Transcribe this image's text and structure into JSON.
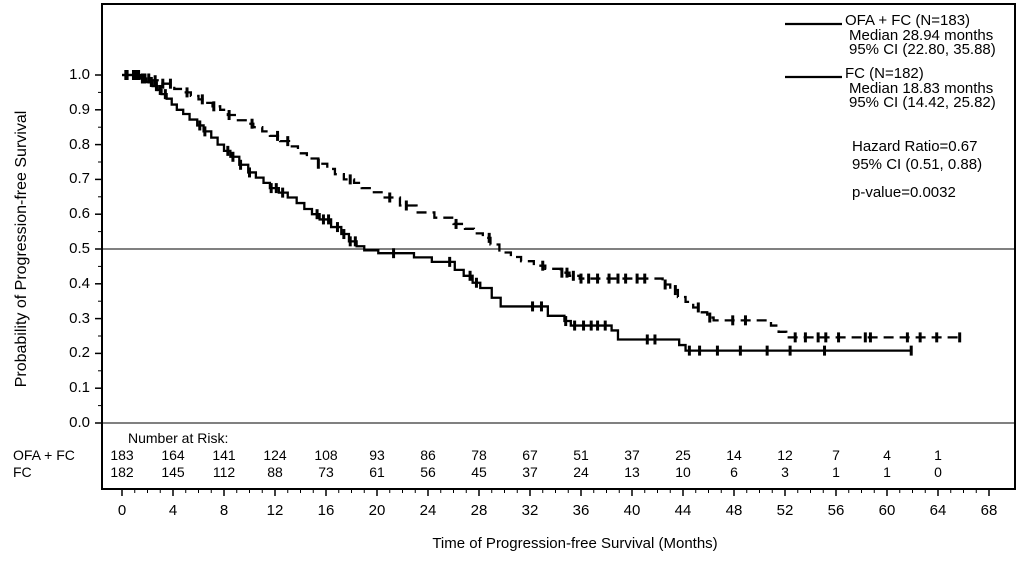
{
  "legend": {
    "series": [
      {
        "name": "OFA + FC (N=183)",
        "median": "Median 28.94 months",
        "ci": "95% CI (22.80, 35.88)"
      },
      {
        "name": "FC (N=182)",
        "median": "Median 18.83 months",
        "ci": "95% CI (14.42, 25.82)"
      }
    ]
  },
  "stats": {
    "hazard_ratio": "Hazard Ratio=0.67",
    "hazard_ratio_ci": "95% CI (0.51, 0.88)",
    "p_value": "p-value=0.0032"
  },
  "chart_data": {
    "type": "line",
    "subtype": "kaplan-meier-step",
    "title": "",
    "xlabel": "Time of Progression-free Survival (Months)",
    "ylabel": "Probability of Progression-free Survival",
    "xlim": [
      0,
      68
    ],
    "ylim": [
      0.0,
      1.0
    ],
    "x_ticks": [
      0,
      4,
      8,
      12,
      16,
      20,
      24,
      28,
      32,
      36,
      40,
      44,
      48,
      52,
      56,
      60,
      64,
      68
    ],
    "x_minor_tick_step": 1,
    "y_ticks": [
      0.0,
      0.1,
      0.2,
      0.3,
      0.4,
      0.5,
      0.6,
      0.7,
      0.8,
      0.9,
      1.0
    ],
    "y_tick_labels": [
      "0.0",
      "0.1",
      "0.2",
      "0.3",
      "0.4",
      "0.5",
      "0.6",
      "0.7",
      "0.8",
      "0.9",
      "1.0"
    ],
    "y_minor_tick_step": 0.05,
    "reference_lines_y": [
      0.5,
      0.0
    ],
    "grid": "off",
    "legend_position": "top-right-inside",
    "line_color": "#000000",
    "series": [
      {
        "name": "OFA + FC (N=183)",
        "n": 183,
        "line_style": "dashed",
        "color": "#000000",
        "median_months": 28.94,
        "ci_95": [
          22.8,
          35.88
        ],
        "steps": [
          [
            0,
            1.0
          ],
          [
            1.5,
            0.99
          ],
          [
            2.2,
            0.985
          ],
          [
            3.0,
            0.975
          ],
          [
            4.1,
            0.96
          ],
          [
            4.8,
            0.95
          ],
          [
            5.4,
            0.94
          ],
          [
            6.0,
            0.93
          ],
          [
            6.6,
            0.92
          ],
          [
            7.1,
            0.91
          ],
          [
            7.7,
            0.9
          ],
          [
            8.3,
            0.885
          ],
          [
            9.0,
            0.87
          ],
          [
            9.7,
            0.86
          ],
          [
            10.3,
            0.85
          ],
          [
            11.0,
            0.838
          ],
          [
            11.6,
            0.825
          ],
          [
            12.4,
            0.81
          ],
          [
            13.1,
            0.795
          ],
          [
            13.8,
            0.775
          ],
          [
            14.5,
            0.76
          ],
          [
            15.4,
            0.745
          ],
          [
            16.1,
            0.73
          ],
          [
            16.7,
            0.715
          ],
          [
            17.4,
            0.7
          ],
          [
            18.2,
            0.69
          ],
          [
            18.8,
            0.675
          ],
          [
            19.6,
            0.663
          ],
          [
            20.6,
            0.648
          ],
          [
            21.8,
            0.625
          ],
          [
            23.1,
            0.605
          ],
          [
            24.5,
            0.59
          ],
          [
            26.0,
            0.572
          ],
          [
            26.9,
            0.558
          ],
          [
            27.6,
            0.545
          ],
          [
            28.3,
            0.532
          ],
          [
            28.9,
            0.513
          ],
          [
            29.6,
            0.49
          ],
          [
            30.5,
            0.477
          ],
          [
            31.3,
            0.465
          ],
          [
            32.3,
            0.452
          ],
          [
            33.2,
            0.443
          ],
          [
            34.4,
            0.432
          ],
          [
            35.1,
            0.423
          ],
          [
            35.9,
            0.415
          ],
          [
            42.4,
            0.398
          ],
          [
            43.0,
            0.382
          ],
          [
            43.6,
            0.362
          ],
          [
            44.2,
            0.348
          ],
          [
            44.8,
            0.332
          ],
          [
            45.3,
            0.318
          ],
          [
            45.9,
            0.303
          ],
          [
            46.4,
            0.295
          ],
          [
            50.9,
            0.28
          ],
          [
            51.5,
            0.262
          ],
          [
            52.1,
            0.246
          ]
        ],
        "censor_times": [
          0.4,
          0.9,
          1.3,
          1.8,
          2.1,
          2.6,
          3.2,
          3.8,
          5.1,
          6.3,
          7.2,
          8.4,
          10.2,
          12.2,
          13.0,
          15.4,
          17.9,
          21.0,
          22.3,
          26.2,
          28.8,
          33.0,
          34.5,
          34.9,
          35.4,
          36.0,
          36.6,
          37.3,
          38.2,
          38.9,
          39.5,
          40.4,
          41.0,
          42.6,
          43.4,
          45.2,
          46.1,
          47.9,
          48.9,
          52.8,
          53.6,
          54.6,
          55.2,
          56.2,
          58.3,
          58.7,
          61.6,
          62.6,
          63.9,
          65.7
        ],
        "end_time": 66.0
      },
      {
        "name": "FC (N=182)",
        "n": 182,
        "line_style": "solid",
        "color": "#000000",
        "median_months": 18.83,
        "ci_95": [
          14.42,
          25.82
        ],
        "steps": [
          [
            0,
            1.0
          ],
          [
            1.3,
            0.99
          ],
          [
            1.9,
            0.98
          ],
          [
            2.4,
            0.968
          ],
          [
            2.8,
            0.957
          ],
          [
            3.1,
            0.945
          ],
          [
            3.5,
            0.932
          ],
          [
            3.9,
            0.915
          ],
          [
            4.3,
            0.9
          ],
          [
            4.8,
            0.888
          ],
          [
            5.3,
            0.872
          ],
          [
            5.9,
            0.855
          ],
          [
            6.4,
            0.838
          ],
          [
            7.0,
            0.82
          ],
          [
            7.5,
            0.8
          ],
          [
            8.0,
            0.782
          ],
          [
            8.5,
            0.765
          ],
          [
            9.2,
            0.742
          ],
          [
            9.9,
            0.72
          ],
          [
            10.5,
            0.705
          ],
          [
            11.1,
            0.69
          ],
          [
            11.6,
            0.675
          ],
          [
            12.3,
            0.662
          ],
          [
            13.0,
            0.648
          ],
          [
            13.7,
            0.632
          ],
          [
            14.3,
            0.615
          ],
          [
            14.9,
            0.6
          ],
          [
            15.5,
            0.585
          ],
          [
            16.4,
            0.563
          ],
          [
            17.2,
            0.543
          ],
          [
            17.8,
            0.522
          ],
          [
            18.4,
            0.508
          ],
          [
            19.0,
            0.496
          ],
          [
            20.1,
            0.488
          ],
          [
            22.9,
            0.476
          ],
          [
            24.3,
            0.463
          ],
          [
            26.1,
            0.44
          ],
          [
            26.8,
            0.423
          ],
          [
            27.5,
            0.403
          ],
          [
            28.1,
            0.388
          ],
          [
            29.0,
            0.36
          ],
          [
            29.7,
            0.335
          ],
          [
            33.4,
            0.308
          ],
          [
            34.7,
            0.293
          ],
          [
            35.2,
            0.28
          ],
          [
            38.4,
            0.266
          ],
          [
            38.9,
            0.24
          ],
          [
            43.7,
            0.224
          ],
          [
            44.2,
            0.208
          ]
        ],
        "censor_times": [
          0.3,
          1.1,
          1.6,
          2.3,
          2.7,
          3.0,
          3.4,
          6.1,
          6.5,
          8.3,
          8.7,
          9.3,
          10.0,
          11.7,
          12.1,
          12.6,
          15.3,
          15.8,
          16.2,
          16.9,
          17.4,
          17.9,
          18.3,
          21.3,
          25.7,
          27.3,
          27.8,
          32.2,
          32.9,
          34.8,
          35.5,
          36.2,
          36.8,
          37.3,
          37.9,
          41.2,
          41.8,
          44.5,
          45.3,
          46.7,
          48.5,
          50.6,
          52.4,
          55.1,
          61.9
        ],
        "end_time": 62.0
      }
    ],
    "number_at_risk": {
      "label": "Number at Risk:",
      "times": [
        0,
        4,
        8,
        12,
        16,
        20,
        24,
        28,
        32,
        36,
        40,
        44,
        48,
        52,
        56,
        60,
        64
      ],
      "rows": [
        {
          "label": "OFA + FC",
          "values": [
            183,
            164,
            141,
            124,
            108,
            93,
            86,
            78,
            67,
            51,
            37,
            25,
            14,
            12,
            7,
            4,
            1
          ]
        },
        {
          "label": "FC",
          "values": [
            182,
            145,
            112,
            88,
            73,
            61,
            56,
            45,
            37,
            24,
            13,
            10,
            6,
            3,
            1,
            1,
            0
          ]
        }
      ]
    }
  }
}
